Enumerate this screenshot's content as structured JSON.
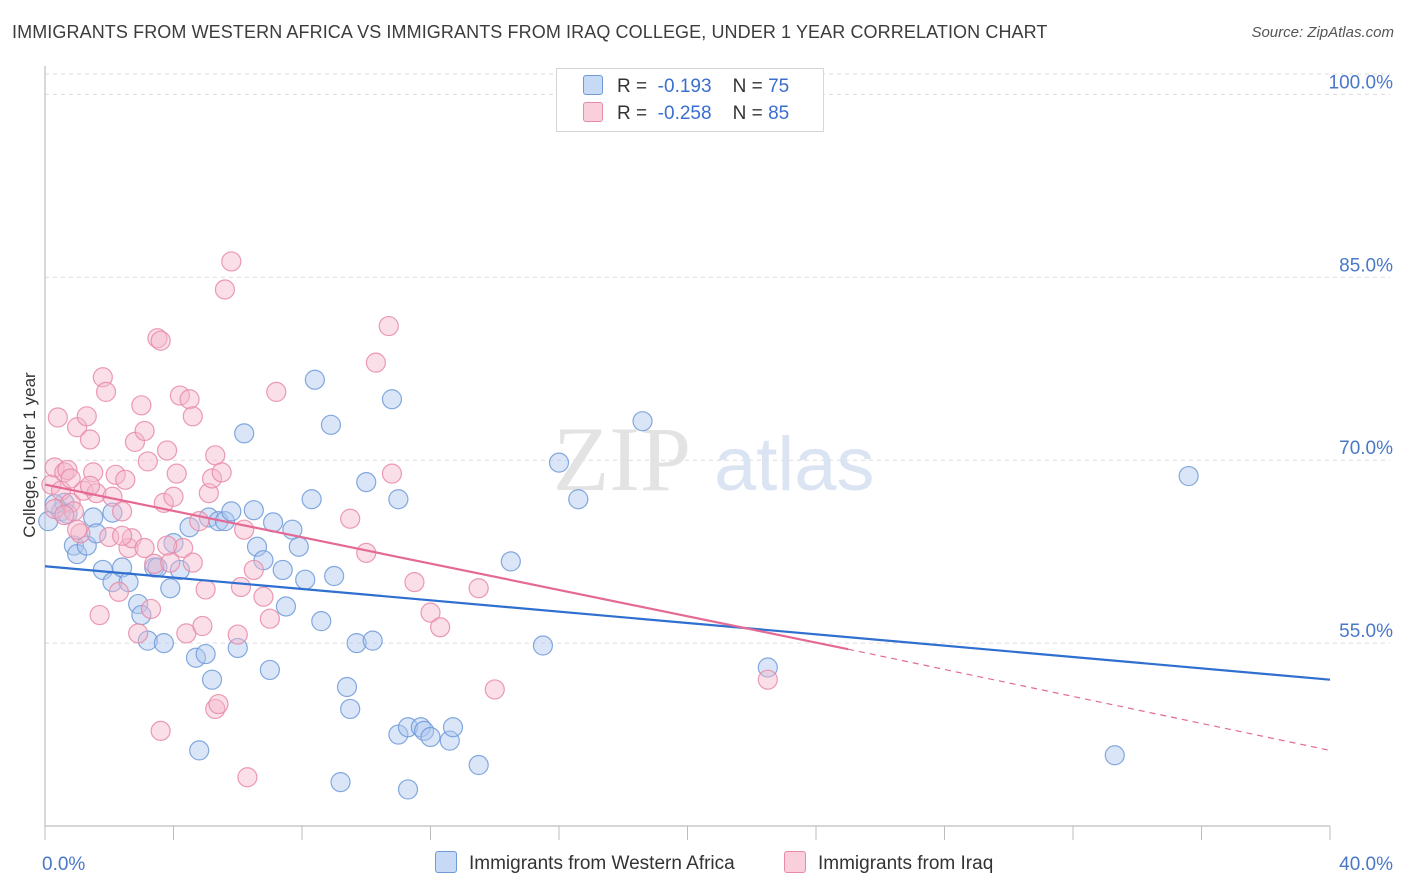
{
  "title": "IMMIGRANTS FROM WESTERN AFRICA VS IMMIGRANTS FROM IRAQ COLLEGE, UNDER 1 YEAR CORRELATION CHART",
  "source": "Source: ZipAtlas.com",
  "watermark": {
    "zip": "ZIP",
    "atlas": "atlas"
  },
  "colors": {
    "blue_fill": "#aec8ef",
    "blue_stroke": "#6f9ad8",
    "blue_line": "#2f6fd0",
    "pink_fill": "#f5b8cb",
    "pink_stroke": "#e88aa8",
    "pink_line": "#e46a95",
    "axis_text": "#4a78c8"
  },
  "legend": {
    "rows": [
      {
        "r_label": "R =",
        "r_value": "-0.193",
        "n_label": "N =",
        "n_value": "75"
      },
      {
        "r_label": "R =",
        "r_value": "-0.258",
        "n_label": "N =",
        "n_value": "85"
      }
    ]
  },
  "bottom_legend": {
    "series1": "Immigrants from Western Africa",
    "series2": "Immigrants from Iraq"
  },
  "chart_data": {
    "type": "scatter",
    "title": "IMMIGRANTS FROM WESTERN AFRICA VS IMMIGRANTS FROM IRAQ COLLEGE, UNDER 1 YEAR CORRELATION CHART",
    "xlabel": "",
    "ylabel": "College, Under 1 year",
    "xlim": [
      0,
      40
    ],
    "ylim": [
      40,
      102
    ],
    "x_tick_labels": [
      "0.0%",
      "40.0%"
    ],
    "y_ticks": [
      55,
      70,
      85,
      100
    ],
    "y_tick_labels": [
      "55.0%",
      "70.0%",
      "85.0%",
      "100.0%"
    ],
    "grid": true,
    "legend_position": "top-center",
    "series": [
      {
        "name": "Immigrants from Western Africa",
        "color": "#aec8ef",
        "trend": {
          "x": [
            0,
            40
          ],
          "y": [
            61.3,
            52.0
          ]
        },
        "points": [
          [
            0.1,
            65.0
          ],
          [
            0.5,
            65.8
          ],
          [
            0.6,
            66.5
          ],
          [
            0.7,
            65.6
          ],
          [
            0.9,
            63.0
          ],
          [
            1.0,
            62.3
          ],
          [
            1.3,
            63.0
          ],
          [
            1.5,
            65.3
          ],
          [
            1.6,
            64.0
          ],
          [
            1.8,
            61.0
          ],
          [
            2.1,
            65.7
          ],
          [
            2.1,
            60.0
          ],
          [
            2.4,
            61.2
          ],
          [
            2.6,
            60.0
          ],
          [
            2.9,
            58.2
          ],
          [
            3.0,
            57.3
          ],
          [
            3.2,
            55.2
          ],
          [
            3.4,
            61.2
          ],
          [
            3.5,
            61.2
          ],
          [
            3.7,
            55.0
          ],
          [
            3.9,
            59.5
          ],
          [
            4.0,
            63.2
          ],
          [
            4.2,
            61.0
          ],
          [
            4.5,
            64.5
          ],
          [
            4.7,
            53.8
          ],
          [
            4.8,
            46.2
          ],
          [
            5.0,
            54.1
          ],
          [
            5.1,
            65.3
          ],
          [
            5.2,
            52.0
          ],
          [
            5.4,
            65.0
          ],
          [
            5.6,
            65.0
          ],
          [
            5.8,
            65.8
          ],
          [
            6.0,
            54.6
          ],
          [
            6.2,
            72.2
          ],
          [
            6.5,
            65.9
          ],
          [
            6.6,
            62.9
          ],
          [
            6.8,
            61.8
          ],
          [
            7.0,
            52.8
          ],
          [
            7.1,
            64.9
          ],
          [
            7.4,
            61.0
          ],
          [
            7.5,
            58.0
          ],
          [
            7.7,
            64.3
          ],
          [
            7.9,
            62.9
          ],
          [
            8.1,
            60.2
          ],
          [
            8.3,
            66.8
          ],
          [
            8.4,
            76.6
          ],
          [
            8.6,
            56.8
          ],
          [
            8.9,
            72.9
          ],
          [
            9.0,
            60.5
          ],
          [
            9.2,
            43.6
          ],
          [
            9.4,
            51.4
          ],
          [
            9.5,
            49.6
          ],
          [
            9.7,
            55.0
          ],
          [
            10.0,
            68.2
          ],
          [
            10.2,
            55.2
          ],
          [
            10.8,
            75.0
          ],
          [
            11.0,
            66.8
          ],
          [
            11.0,
            47.5
          ],
          [
            11.3,
            48.1
          ],
          [
            11.3,
            43.0
          ],
          [
            11.7,
            48.1
          ],
          [
            11.8,
            47.8
          ],
          [
            12.0,
            47.3
          ],
          [
            12.6,
            47.0
          ],
          [
            12.7,
            48.1
          ],
          [
            13.5,
            45.0
          ],
          [
            14.5,
            61.7
          ],
          [
            15.5,
            54.8
          ],
          [
            16.0,
            69.8
          ],
          [
            16.6,
            66.8
          ],
          [
            18.6,
            73.2
          ],
          [
            22.5,
            53.0
          ],
          [
            33.3,
            45.8
          ],
          [
            35.6,
            68.7
          ],
          [
            0.3,
            66.4
          ]
        ]
      },
      {
        "name": "Immigrants from Iraq",
        "color": "#f5b8cb",
        "trend": {
          "x": [
            0,
            25.0
          ],
          "y": [
            68.0,
            54.5
          ]
        },
        "trend_dashed": {
          "x": [
            25.0,
            40
          ],
          "y": [
            54.5,
            46.2
          ]
        },
        "points": [
          [
            0.2,
            68.0
          ],
          [
            0.3,
            66.0
          ],
          [
            0.3,
            69.4
          ],
          [
            0.4,
            73.5
          ],
          [
            0.5,
            67.5
          ],
          [
            0.6,
            69.0
          ],
          [
            0.7,
            69.2
          ],
          [
            0.8,
            66.5
          ],
          [
            0.9,
            65.8
          ],
          [
            1.0,
            72.7
          ],
          [
            1.1,
            64.0
          ],
          [
            1.2,
            67.5
          ],
          [
            1.3,
            73.6
          ],
          [
            1.4,
            71.7
          ],
          [
            1.5,
            69.0
          ],
          [
            1.6,
            67.3
          ],
          [
            1.7,
            57.3
          ],
          [
            1.8,
            76.8
          ],
          [
            1.9,
            75.6
          ],
          [
            2.0,
            63.7
          ],
          [
            2.1,
            67.0
          ],
          [
            2.2,
            68.8
          ],
          [
            2.3,
            59.2
          ],
          [
            2.4,
            65.8
          ],
          [
            2.5,
            68.4
          ],
          [
            2.6,
            62.8
          ],
          [
            2.7,
            63.6
          ],
          [
            2.8,
            71.5
          ],
          [
            2.9,
            55.8
          ],
          [
            3.0,
            74.5
          ],
          [
            3.1,
            72.4
          ],
          [
            3.1,
            62.8
          ],
          [
            3.2,
            69.9
          ],
          [
            3.3,
            57.8
          ],
          [
            3.4,
            61.5
          ],
          [
            3.5,
            80.0
          ],
          [
            3.6,
            79.8
          ],
          [
            3.6,
            47.8
          ],
          [
            3.7,
            66.5
          ],
          [
            3.8,
            70.8
          ],
          [
            3.9,
            61.6
          ],
          [
            4.0,
            67.0
          ],
          [
            4.1,
            68.9
          ],
          [
            4.2,
            75.3
          ],
          [
            4.3,
            62.8
          ],
          [
            4.4,
            55.8
          ],
          [
            4.5,
            75.0
          ],
          [
            4.6,
            73.6
          ],
          [
            4.6,
            61.6
          ],
          [
            4.8,
            65.0
          ],
          [
            4.9,
            56.4
          ],
          [
            5.0,
            59.4
          ],
          [
            5.1,
            67.3
          ],
          [
            5.2,
            68.5
          ],
          [
            5.3,
            70.4
          ],
          [
            5.3,
            49.6
          ],
          [
            5.4,
            50.0
          ],
          [
            5.5,
            69.0
          ],
          [
            5.6,
            84.0
          ],
          [
            5.8,
            86.3
          ],
          [
            6.0,
            55.7
          ],
          [
            6.1,
            59.6
          ],
          [
            6.2,
            64.3
          ],
          [
            6.3,
            44.0
          ],
          [
            6.5,
            61.0
          ],
          [
            6.8,
            58.8
          ],
          [
            7.0,
            57.0
          ],
          [
            7.2,
            75.6
          ],
          [
            9.5,
            65.2
          ],
          [
            10.0,
            62.4
          ],
          [
            10.3,
            78.0
          ],
          [
            10.7,
            81.0
          ],
          [
            10.8,
            68.9
          ],
          [
            11.5,
            60.0
          ],
          [
            12.0,
            57.5
          ],
          [
            12.3,
            56.3
          ],
          [
            13.5,
            59.5
          ],
          [
            14.0,
            51.2
          ],
          [
            22.5,
            52.0
          ],
          [
            1.0,
            64.3
          ],
          [
            2.4,
            63.8
          ],
          [
            3.8,
            63.0
          ],
          [
            0.8,
            68.5
          ],
          [
            1.4,
            67.9
          ],
          [
            0.6,
            65.5
          ]
        ]
      }
    ]
  }
}
